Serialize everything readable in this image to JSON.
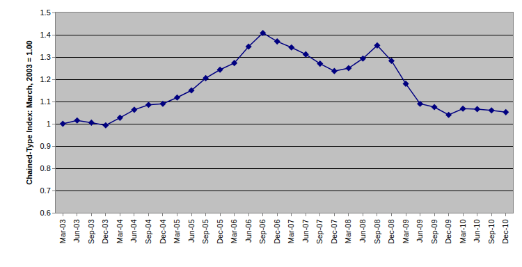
{
  "chart_data": {
    "type": "line",
    "y_label": "Chained-Type Index: March, 2003 = 1.00",
    "categories": [
      "Mar-03",
      "Jun-03",
      "Sep-03",
      "Dec-03",
      "Mar-04",
      "Jun-04",
      "Sep-04",
      "Dec-04",
      "Mar-05",
      "Jun-05",
      "Sep-05",
      "Dec-05",
      "Mar-06",
      "Jun-06",
      "Sep-06",
      "Dec-06",
      "Mar-07",
      "Jun-07",
      "Sep-07",
      "Dec-07",
      "Mar-08",
      "Jun-08",
      "Sep-08",
      "Dec-08",
      "Mar-09",
      "Jun-09",
      "Sep-09",
      "Dec-09",
      "Mar-10",
      "Jun-10",
      "Sep-10",
      "Dec-10"
    ],
    "values": [
      1.0,
      1.015,
      1.005,
      0.993,
      1.027,
      1.063,
      1.085,
      1.09,
      1.118,
      1.15,
      1.205,
      1.243,
      1.273,
      1.347,
      1.408,
      1.37,
      1.343,
      1.312,
      1.27,
      1.237,
      1.25,
      1.293,
      1.352,
      1.283,
      1.18,
      1.09,
      1.075,
      1.04,
      1.068,
      1.066,
      1.06,
      1.052
    ],
    "color": "#000080",
    "marker": "diamond",
    "line_style": "solid",
    "ylim": [
      0.6,
      1.5
    ],
    "yticks": [
      0.6,
      0.7,
      0.8,
      0.9,
      1,
      1.1,
      1.2,
      1.3,
      1.4,
      1.5
    ],
    "grid": true
  }
}
